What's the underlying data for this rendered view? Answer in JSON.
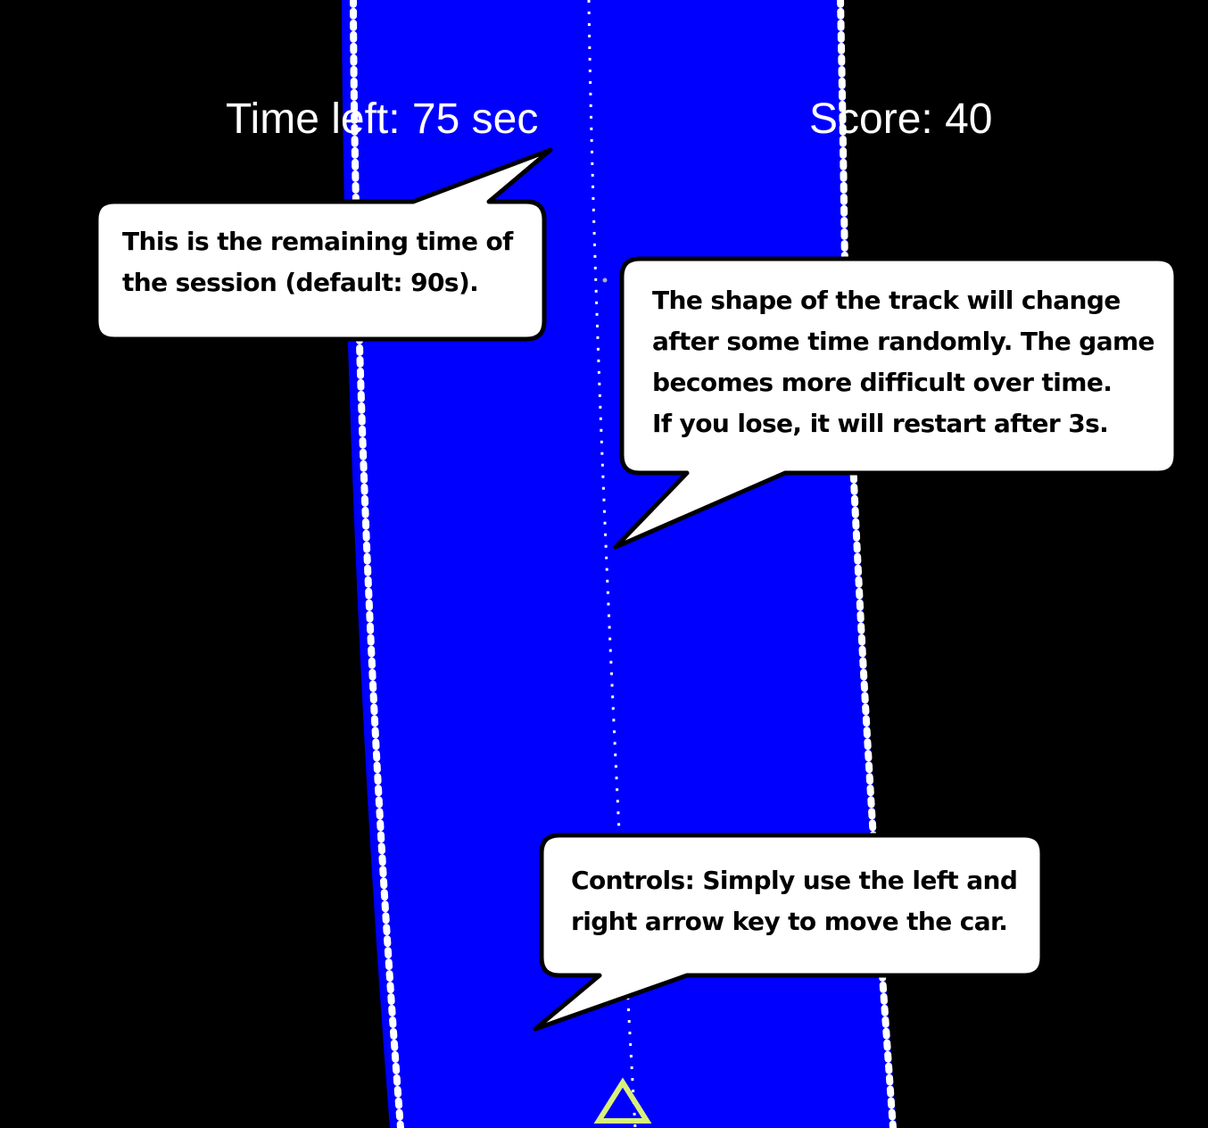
{
  "hud": {
    "time_left": "Time left: 75 sec",
    "score": "Score: 40"
  },
  "callouts": {
    "time": {
      "lines": [
        "This is the remaining time of",
        "the session (default: 90s)."
      ]
    },
    "track": {
      "lines": [
        "The shape of the track will change",
        "after some time randomly. The game",
        "becomes more difficult over time.",
        "If you lose, it will restart after 3s."
      ]
    },
    "controls": {
      "lines": [
        "Controls: Simply use the left and",
        "right arrow key to move the car."
      ]
    }
  },
  "colors": {
    "background": "#000000",
    "track": "#0000ff",
    "track_edge_dash": "#ffffff",
    "center_line": "#ffffff",
    "car": "#d8f07a",
    "bubble_fill": "#ffffff",
    "bubble_border": "#000000",
    "hud_text": "#ffffff"
  }
}
